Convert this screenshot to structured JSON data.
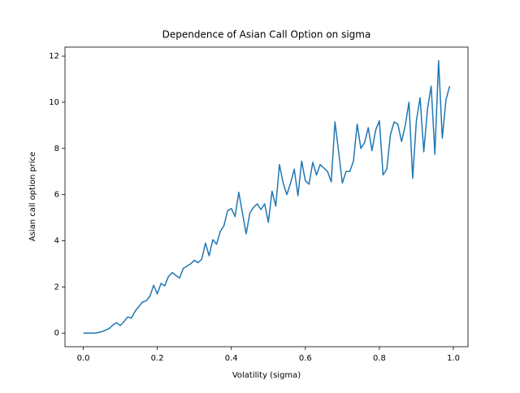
{
  "chart_data": {
    "type": "line",
    "title": "Dependence of Asian Call Option on sigma",
    "x_label": "Volatility (sigma)",
    "y_label": "Asian call option price",
    "x": [
      0,
      0.01,
      0.02,
      0.03,
      0.04,
      0.05,
      0.06,
      0.07,
      0.08,
      0.09,
      0.1,
      0.11,
      0.12,
      0.13,
      0.14,
      0.15,
      0.16,
      0.17,
      0.18,
      0.19,
      0.2,
      0.21,
      0.22,
      0.23,
      0.24,
      0.25,
      0.26,
      0.27,
      0.28,
      0.29,
      0.3,
      0.31,
      0.32,
      0.33,
      0.34,
      0.35,
      0.36,
      0.37,
      0.38,
      0.39,
      0.4,
      0.41,
      0.42,
      0.43,
      0.44,
      0.45,
      0.46,
      0.47,
      0.48,
      0.49,
      0.5,
      0.51,
      0.52,
      0.53,
      0.54,
      0.55,
      0.56,
      0.57,
      0.58,
      0.59,
      0.6,
      0.61,
      0.62,
      0.63,
      0.64,
      0.65,
      0.66,
      0.67,
      0.68,
      0.69,
      0.7,
      0.71,
      0.72,
      0.73,
      0.74,
      0.75,
      0.76,
      0.77,
      0.78,
      0.79,
      0.8,
      0.81,
      0.82,
      0.83,
      0.84,
      0.85,
      0.86,
      0.87,
      0.88,
      0.89,
      0.9,
      0.91,
      0.92,
      0.93,
      0.94,
      0.95,
      0.96,
      0.97,
      0.98,
      0.99
    ],
    "series": [
      {
        "color": "#1f77b4",
        "values": [
          0,
          0,
          0,
          0,
          0.02,
          0.06,
          0.13,
          0.2,
          0.35,
          0.45,
          0.33,
          0.5,
          0.7,
          0.65,
          0.95,
          1.15,
          1.35,
          1.4,
          1.6,
          2.07,
          1.7,
          2.15,
          2.05,
          2.45,
          2.62,
          2.5,
          2.38,
          2.8,
          2.9,
          3.0,
          3.15,
          3.05,
          3.2,
          3.9,
          3.35,
          4.05,
          3.85,
          4.4,
          4.65,
          5.3,
          5.4,
          5.05,
          6.1,
          5.2,
          4.3,
          5.2,
          5.45,
          5.6,
          5.35,
          5.6,
          4.8,
          6.15,
          5.5,
          7.3,
          6.5,
          6.0,
          6.5,
          7.1,
          5.95,
          7.45,
          6.6,
          6.45,
          7.4,
          6.85,
          7.3,
          7.15,
          7.0,
          6.55,
          9.15,
          7.85,
          6.5,
          7.0,
          7.0,
          7.45,
          9.05,
          8.0,
          8.25,
          8.9,
          7.9,
          8.8,
          9.2,
          6.85,
          7.1,
          8.6,
          9.15,
          9.05,
          8.3,
          9.0,
          10.0,
          6.7,
          9.2,
          10.2,
          7.85,
          9.7,
          10.7,
          7.75,
          11.8,
          8.45,
          10.1,
          10.7
        ]
      }
    ],
    "xlim": [
      -0.0495,
      1.0395
    ],
    "ylim": [
      -0.59,
      12.39
    ],
    "xticks": [
      {
        "value": 0,
        "label": "0.0"
      },
      {
        "value": 0.2,
        "label": "0.2"
      },
      {
        "value": 0.4,
        "label": "0.4"
      },
      {
        "value": 0.6,
        "label": "0.6"
      },
      {
        "value": 0.8,
        "label": "0.8"
      },
      {
        "value": 1,
        "label": "1.0"
      }
    ],
    "yticks": [
      0,
      2,
      4,
      6,
      8,
      10,
      12
    ]
  }
}
